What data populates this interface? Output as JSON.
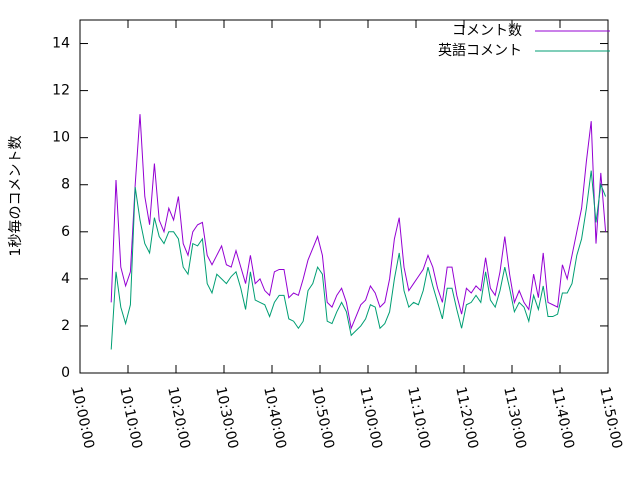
{
  "chart_data": {
    "type": "line",
    "y_label": "1秒毎のコメント数",
    "x": [
      "10:06:30",
      "10:07:30",
      "10:08:30",
      "10:09:30",
      "10:10:30",
      "10:11:30",
      "10:12:30",
      "10:13:30",
      "10:14:30",
      "10:15:30",
      "10:16:30",
      "10:17:30",
      "10:18:30",
      "10:19:30",
      "10:20:30",
      "10:21:30",
      "10:22:30",
      "10:23:30",
      "10:24:30",
      "10:25:30",
      "10:26:30",
      "10:27:30",
      "10:28:30",
      "10:29:30",
      "10:30:30",
      "10:31:30",
      "10:32:30",
      "10:33:30",
      "10:34:30",
      "10:35:30",
      "10:36:30",
      "10:37:30",
      "10:38:30",
      "10:39:30",
      "10:40:30",
      "10:41:30",
      "10:42:30",
      "10:43:30",
      "10:44:30",
      "10:45:30",
      "10:46:30",
      "10:47:30",
      "10:48:30",
      "10:49:30",
      "10:50:30",
      "10:51:30",
      "10:52:30",
      "10:53:30",
      "10:54:30",
      "10:55:30",
      "10:56:30",
      "10:57:30",
      "10:58:30",
      "10:59:30",
      "11:00:30",
      "11:01:30",
      "11:02:30",
      "11:03:30",
      "11:04:30",
      "11:05:30",
      "11:06:30",
      "11:07:30",
      "11:08:30",
      "11:09:30",
      "11:10:30",
      "11:11:30",
      "11:12:30",
      "11:13:30",
      "11:14:30",
      "11:15:30",
      "11:16:30",
      "11:17:30",
      "11:18:30",
      "11:19:30",
      "11:20:30",
      "11:21:30",
      "11:22:30",
      "11:23:30",
      "11:24:30",
      "11:25:30",
      "11:26:30",
      "11:27:30",
      "11:28:30",
      "11:29:30",
      "11:30:30",
      "11:31:30",
      "11:32:30",
      "11:33:30",
      "11:34:30",
      "11:35:30",
      "11:36:30",
      "11:37:30",
      "11:38:30",
      "11:39:30",
      "11:40:30",
      "11:41:30",
      "11:42:30",
      "11:43:30",
      "11:44:30",
      "11:45:30",
      "11:46:30",
      "11:47:30",
      "11:48:30",
      "11:49:30"
    ],
    "series": [
      {
        "name": "コメント数",
        "color": "#9400d3",
        "values": [
          3.0,
          8.2,
          4.5,
          3.7,
          4.3,
          8.0,
          11.0,
          7.5,
          6.3,
          8.9,
          6.5,
          6.0,
          7.0,
          6.5,
          7.5,
          5.5,
          5.0,
          6.0,
          6.3,
          6.4,
          5.0,
          4.6,
          5.0,
          5.4,
          4.6,
          4.5,
          5.2,
          4.5,
          3.8,
          5.0,
          3.8,
          4.0,
          3.5,
          3.3,
          4.3,
          4.4,
          4.4,
          3.2,
          3.4,
          3.3,
          4.0,
          4.8,
          5.3,
          5.8,
          5.0,
          3.0,
          2.8,
          3.3,
          3.6,
          3.0,
          1.9,
          2.4,
          2.9,
          3.1,
          3.7,
          3.4,
          2.8,
          3.0,
          4.0,
          5.7,
          6.6,
          4.5,
          3.5,
          3.8,
          4.1,
          4.4,
          5.0,
          4.5,
          3.6,
          3.0,
          4.5,
          4.5,
          3.3,
          2.5,
          3.6,
          3.4,
          3.7,
          3.5,
          4.9,
          3.6,
          3.3,
          4.3,
          5.8,
          4.2,
          3.0,
          3.5,
          3.0,
          2.7,
          4.2,
          3.2,
          5.1,
          3.0,
          2.9,
          2.8,
          4.6,
          4.0,
          5.0,
          6.0,
          7.0,
          9.0,
          10.7,
          5.5,
          8.5,
          6.0
        ]
      },
      {
        "name": "英語コメント",
        "color": "#009e73",
        "values": [
          1.0,
          4.3,
          2.8,
          2.1,
          2.9,
          7.9,
          6.5,
          5.5,
          5.1,
          6.6,
          5.8,
          5.5,
          6.0,
          6.0,
          5.7,
          4.5,
          4.2,
          5.5,
          5.4,
          5.7,
          3.8,
          3.4,
          4.2,
          4.0,
          3.8,
          4.1,
          4.3,
          3.6,
          2.7,
          4.3,
          3.1,
          3.0,
          2.9,
          2.4,
          3.0,
          3.3,
          3.3,
          2.3,
          2.2,
          1.9,
          2.2,
          3.5,
          3.8,
          4.5,
          4.2,
          2.2,
          2.1,
          2.6,
          3.0,
          2.6,
          1.6,
          1.8,
          2.0,
          2.3,
          2.9,
          2.8,
          1.9,
          2.1,
          2.6,
          4.0,
          5.1,
          3.5,
          2.8,
          3.0,
          2.9,
          3.5,
          4.5,
          3.7,
          3.0,
          2.3,
          3.6,
          3.6,
          2.7,
          1.9,
          2.9,
          3.0,
          3.3,
          3.0,
          4.3,
          3.1,
          2.8,
          3.5,
          4.5,
          3.6,
          2.6,
          3.0,
          2.8,
          2.2,
          3.3,
          2.7,
          3.7,
          2.4,
          2.4,
          2.5,
          3.4,
          3.4,
          3.8,
          5.0,
          5.7,
          7.0,
          8.6,
          6.4,
          8.0,
          7.5
        ]
      }
    ],
    "xlim": [
      "10:00:00",
      "11:50:00"
    ],
    "xticks": [
      "10:00:00",
      "10:10:00",
      "10:20:00",
      "10:30:00",
      "10:40:00",
      "10:50:00",
      "11:00:00",
      "11:10:00",
      "11:20:00",
      "11:30:00",
      "11:40:00",
      "11:50:00"
    ],
    "ylim": [
      0,
      15
    ],
    "yticks": [
      0,
      2,
      4,
      6,
      8,
      10,
      12,
      14
    ],
    "legend": "top right"
  }
}
